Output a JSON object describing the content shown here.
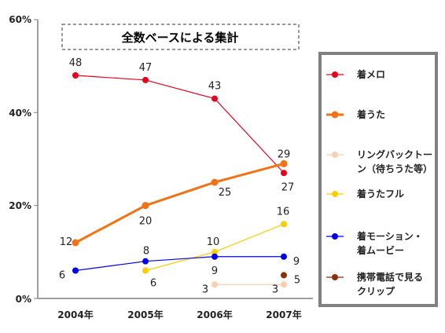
{
  "chart_data": {
    "type": "line",
    "title": "全数ベースによる集計",
    "categories": [
      "2004年",
      "2005年",
      "2006年",
      "2007年"
    ],
    "y_tick_labels": [
      "0%",
      "20%",
      "40%",
      "60%"
    ],
    "ylim": [
      0,
      60
    ],
    "grid": false,
    "legend_position": "right",
    "series": [
      {
        "key": "melo",
        "name": "着メロ",
        "color": "#e8001c",
        "values": [
          48,
          47,
          43,
          27
        ],
        "labels": [
          "48",
          "47",
          "43",
          "27"
        ]
      },
      {
        "key": "uta",
        "name": "着うた",
        "color": "#f47216",
        "values": [
          12,
          20,
          25,
          29
        ],
        "labels": [
          "12",
          "20",
          "25",
          "29"
        ]
      },
      {
        "key": "ringback",
        "name_lines": [
          "リングバックトー",
          "ン（待ちうた等）"
        ],
        "color": "#f9cfb0",
        "values": [
          null,
          null,
          3,
          3
        ],
        "labels": [
          "",
          "",
          "3",
          "3"
        ]
      },
      {
        "key": "utafull",
        "name": "着うたフル",
        "color": "#ffcc00",
        "values": [
          null,
          6,
          10,
          16
        ],
        "labels": [
          "",
          "6",
          "10",
          "16"
        ]
      },
      {
        "key": "motion",
        "name_lines": [
          "着モーション・",
          "着ムービー"
        ],
        "color": "#0000ee",
        "values": [
          6,
          8,
          9,
          9
        ],
        "labels": [
          "6",
          "8",
          "9",
          "9"
        ]
      },
      {
        "key": "clip",
        "name_lines": [
          "携帯電話で見る",
          "クリップ"
        ],
        "color": "#8b2e0a",
        "values": [
          null,
          null,
          null,
          5
        ],
        "labels": [
          "",
          "",
          "",
          "5"
        ]
      }
    ]
  }
}
